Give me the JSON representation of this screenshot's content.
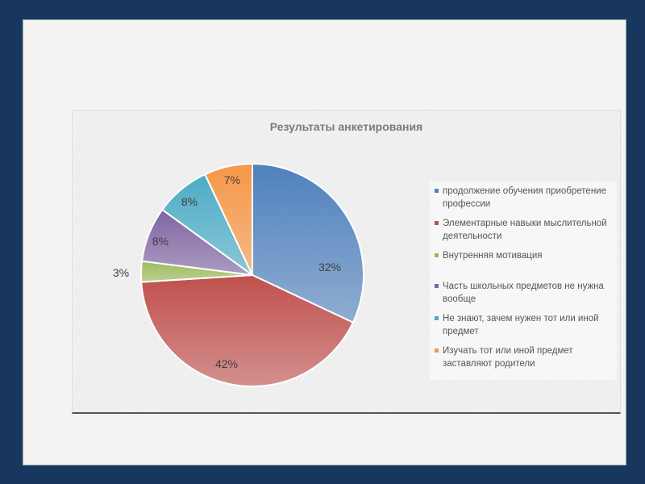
{
  "chart_data": {
    "type": "pie",
    "title": "Результаты анкетирования",
    "legend_position": "right",
    "slices": [
      {
        "label": "продолжение обучения приобретение профессии",
        "value": 32,
        "data_label": "32%",
        "color": "#4f81bd"
      },
      {
        "label": "Элементарные навыки  мыслительной деятельности",
        "value": 42,
        "data_label": "42%",
        "color": "#c0504d"
      },
      {
        "label": "Внутренняя мотивация",
        "value": 3,
        "data_label": "3%",
        "color": "#9bbb59"
      },
      {
        "label": "Часть школьных предметов не нужна вообще",
        "value": 8,
        "data_label": "8%",
        "color": "#8064a2"
      },
      {
        "label": "Не знают, зачем нужен тот или иной предмет",
        "value": 8,
        "data_label": "8%",
        "color": "#4bacc6"
      },
      {
        "label": "Изучать тот или иной предмет заставляют родители",
        "value": 7,
        "data_label": "7%",
        "color": "#f79646"
      }
    ]
  }
}
